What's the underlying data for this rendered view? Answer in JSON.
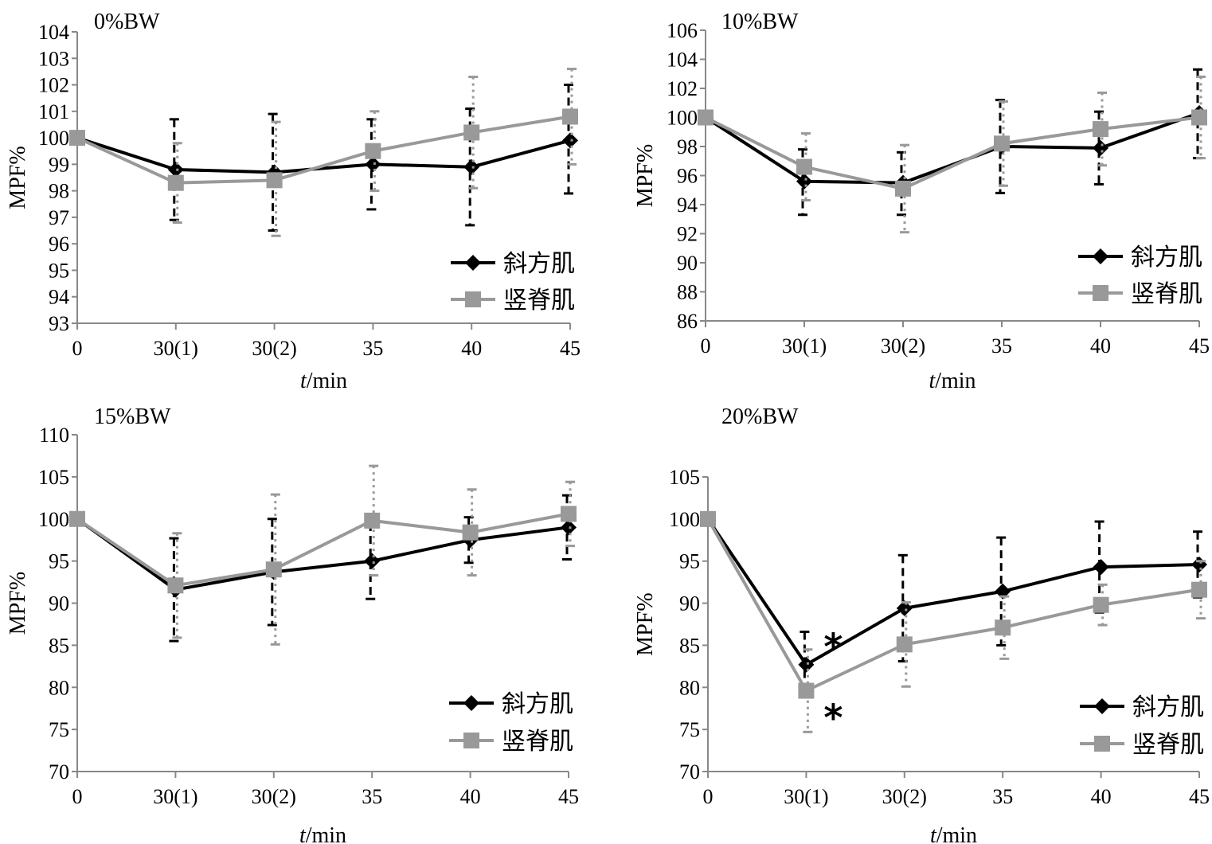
{
  "colors": {
    "trapezius": "#000000",
    "erector": "#999999",
    "axis": "#888888"
  },
  "chart_data": [
    {
      "type": "line",
      "title": "0%BW",
      "xlabel_italic": "t",
      "xlabel_rest": "/min",
      "ylabel": "MPF%",
      "categories": [
        "0",
        "30(1)",
        "30(2)",
        "35",
        "40",
        "45"
      ],
      "ylim": [
        93,
        104
      ],
      "yticks": [
        93,
        94,
        95,
        96,
        97,
        98,
        99,
        100,
        101,
        102,
        103,
        104
      ],
      "legend_position": "bottom-right",
      "series": [
        {
          "name": "斜方肌",
          "marker": "diamond",
          "values": [
            100,
            98.8,
            98.7,
            99.0,
            98.9,
            99.9
          ],
          "err_plus": [
            0,
            1.9,
            2.2,
            1.7,
            2.2,
            2.1
          ],
          "err_minus": [
            0,
            1.9,
            2.2,
            1.7,
            2.2,
            2.0
          ]
        },
        {
          "name": "竖脊肌",
          "marker": "square",
          "values": [
            100,
            98.3,
            98.4,
            99.5,
            100.2,
            100.8
          ],
          "err_plus": [
            0,
            1.5,
            2.2,
            1.5,
            2.1,
            1.8
          ],
          "err_minus": [
            0,
            1.5,
            2.1,
            1.5,
            2.1,
            1.8
          ]
        }
      ]
    },
    {
      "type": "line",
      "title": "10%BW",
      "xlabel_italic": "t",
      "xlabel_rest": "/min",
      "ylabel": "MPF%",
      "categories": [
        "0",
        "30(1)",
        "30(2)",
        "35",
        "40",
        "45"
      ],
      "ylim": [
        86,
        106
      ],
      "yticks": [
        86,
        88,
        90,
        92,
        94,
        96,
        98,
        100,
        102,
        104,
        106
      ],
      "legend_position": "bottom-right",
      "series": [
        {
          "name": "斜方肌",
          "marker": "diamond",
          "values": [
            100,
            95.6,
            95.5,
            98.0,
            97.9,
            100.3
          ],
          "err_plus": [
            0,
            2.2,
            2.1,
            3.2,
            2.5,
            3.0
          ],
          "err_minus": [
            0,
            2.3,
            2.2,
            3.2,
            2.5,
            3.1
          ]
        },
        {
          "name": "竖脊肌",
          "marker": "square",
          "values": [
            100,
            96.6,
            95.1,
            98.2,
            99.2,
            100.0
          ],
          "err_plus": [
            0,
            2.3,
            3.0,
            2.9,
            2.5,
            2.8
          ],
          "err_minus": [
            0,
            2.3,
            3.0,
            2.9,
            2.5,
            2.8
          ]
        }
      ]
    },
    {
      "type": "line",
      "title": "15%BW",
      "xlabel_italic": "t",
      "xlabel_rest": "/min",
      "ylabel": "MPF%",
      "categories": [
        "0",
        "30(1)",
        "30(2)",
        "35",
        "40",
        "45"
      ],
      "ylim": [
        70,
        110
      ],
      "yticks": [
        70,
        75,
        80,
        85,
        90,
        95,
        100,
        105,
        110
      ],
      "legend_position": "bottom-right",
      "series": [
        {
          "name": "斜方肌",
          "marker": "diamond",
          "values": [
            100,
            91.6,
            93.7,
            95.0,
            97.5,
            99.0
          ],
          "err_plus": [
            0,
            6.1,
            6.3,
            4.5,
            2.7,
            3.8
          ],
          "err_minus": [
            0,
            6.1,
            6.3,
            4.5,
            2.7,
            3.8
          ]
        },
        {
          "name": "竖脊肌",
          "marker": "square",
          "values": [
            100,
            92.1,
            94.0,
            99.8,
            98.4,
            100.6
          ],
          "err_plus": [
            0,
            6.2,
            8.9,
            6.5,
            5.1,
            3.8
          ],
          "err_minus": [
            0,
            6.2,
            8.9,
            6.5,
            5.1,
            3.8
          ]
        }
      ]
    },
    {
      "type": "line",
      "title": "20%BW",
      "xlabel_italic": "t",
      "xlabel_rest": "/min",
      "ylabel": "MPF%",
      "categories": [
        "0",
        "30(1)",
        "30(2)",
        "35",
        "40",
        "45"
      ],
      "ylim": [
        70,
        105
      ],
      "yticks": [
        70,
        75,
        80,
        85,
        90,
        95,
        100,
        105
      ],
      "legend_position": "bottom-right",
      "annotations": [
        {
          "text": "*",
          "series": 0,
          "index": 1
        },
        {
          "text": "*",
          "series": 1,
          "index": 1
        }
      ],
      "series": [
        {
          "name": "斜方肌",
          "marker": "diamond",
          "values": [
            100,
            82.7,
            89.4,
            91.4,
            94.3,
            94.6
          ],
          "err_plus": [
            0,
            3.9,
            6.3,
            6.4,
            5.4,
            3.9
          ],
          "err_minus": [
            0,
            3.9,
            6.3,
            6.4,
            5.4,
            3.9
          ]
        },
        {
          "name": "竖脊肌",
          "marker": "square",
          "values": [
            100,
            79.6,
            85.1,
            87.1,
            89.8,
            91.6
          ],
          "err_plus": [
            0,
            4.9,
            5.0,
            3.7,
            2.4,
            3.4
          ],
          "err_minus": [
            0,
            4.9,
            5.0,
            3.7,
            2.4,
            3.4
          ]
        }
      ]
    }
  ]
}
